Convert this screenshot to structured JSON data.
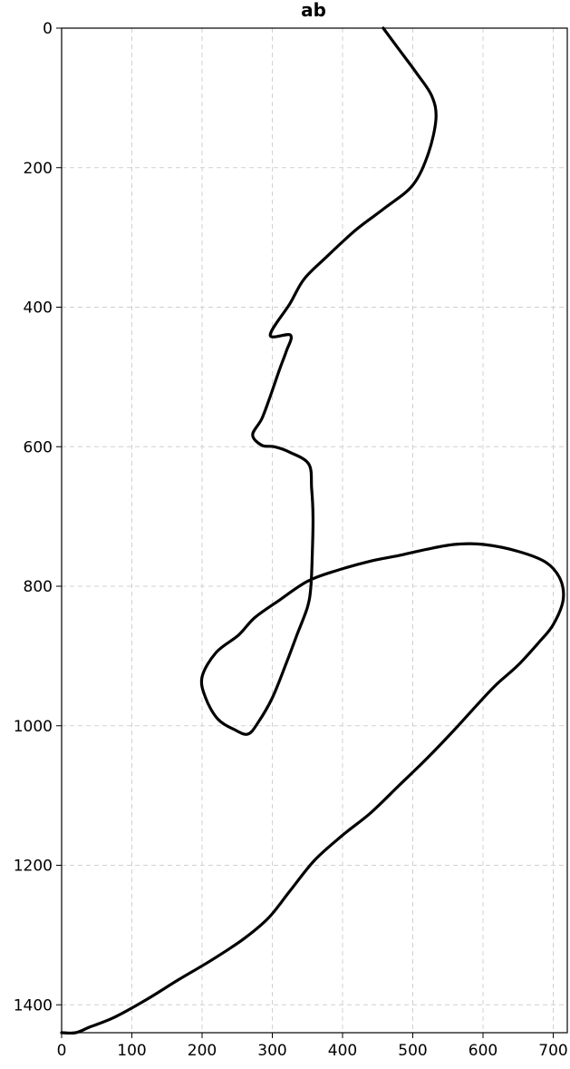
{
  "chart_data": {
    "type": "line",
    "title": "ab",
    "xlabel": "",
    "ylabel": "",
    "xlim": [
      0,
      720
    ],
    "ylim": [
      1440,
      0
    ],
    "y_inverted": true,
    "grid": true,
    "xticks": [
      0,
      100,
      200,
      300,
      400,
      500,
      600,
      700
    ],
    "yticks": [
      0,
      200,
      400,
      600,
      800,
      1000,
      1200,
      1400
    ],
    "line_color": "#000000",
    "grid_color": "#d0d0d0",
    "series": [
      {
        "points": [
          [
            458,
            0
          ],
          [
            480,
            30
          ],
          [
            505,
            64
          ],
          [
            527,
            97
          ],
          [
            533,
            130
          ],
          [
            522,
            180
          ],
          [
            500,
            225
          ],
          [
            460,
            258
          ],
          [
            418,
            290
          ],
          [
            375,
            330
          ],
          [
            345,
            360
          ],
          [
            325,
            395
          ],
          [
            297,
            440
          ],
          [
            326,
            440
          ],
          [
            320,
            463
          ],
          [
            310,
            490
          ],
          [
            297,
            528
          ],
          [
            285,
            560
          ],
          [
            272,
            583
          ],
          [
            285,
            598
          ],
          [
            303,
            600
          ],
          [
            325,
            608
          ],
          [
            352,
            625
          ],
          [
            356,
            660
          ],
          [
            358,
            700
          ],
          [
            357,
            750
          ],
          [
            355,
            800
          ],
          [
            350,
            830
          ],
          [
            335,
            870
          ],
          [
            320,
            910
          ],
          [
            300,
            960
          ],
          [
            280,
            995
          ],
          [
            265,
            1012
          ],
          [
            245,
            1005
          ],
          [
            222,
            990
          ],
          [
            205,
            960
          ],
          [
            200,
            930
          ],
          [
            220,
            895
          ],
          [
            252,
            870
          ],
          [
            275,
            845
          ],
          [
            310,
            820
          ],
          [
            350,
            793
          ],
          [
            390,
            778
          ],
          [
            440,
            764
          ],
          [
            480,
            756
          ],
          [
            520,
            747
          ],
          [
            560,
            740
          ],
          [
            600,
            740
          ],
          [
            650,
            750
          ],
          [
            690,
            766
          ],
          [
            710,
            790
          ],
          [
            714,
            820
          ],
          [
            700,
            855
          ],
          [
            680,
            880
          ],
          [
            650,
            913
          ],
          [
            620,
            940
          ],
          [
            598,
            963
          ],
          [
            560,
            1005
          ],
          [
            520,
            1047
          ],
          [
            480,
            1086
          ],
          [
            440,
            1125
          ],
          [
            400,
            1157
          ],
          [
            360,
            1193
          ],
          [
            325,
            1237
          ],
          [
            295,
            1275
          ],
          [
            260,
            1305
          ],
          [
            215,
            1335
          ],
          [
            165,
            1365
          ],
          [
            120,
            1393
          ],
          [
            75,
            1418
          ],
          [
            40,
            1432
          ],
          [
            20,
            1440
          ],
          [
            0,
            1440
          ]
        ]
      }
    ]
  }
}
